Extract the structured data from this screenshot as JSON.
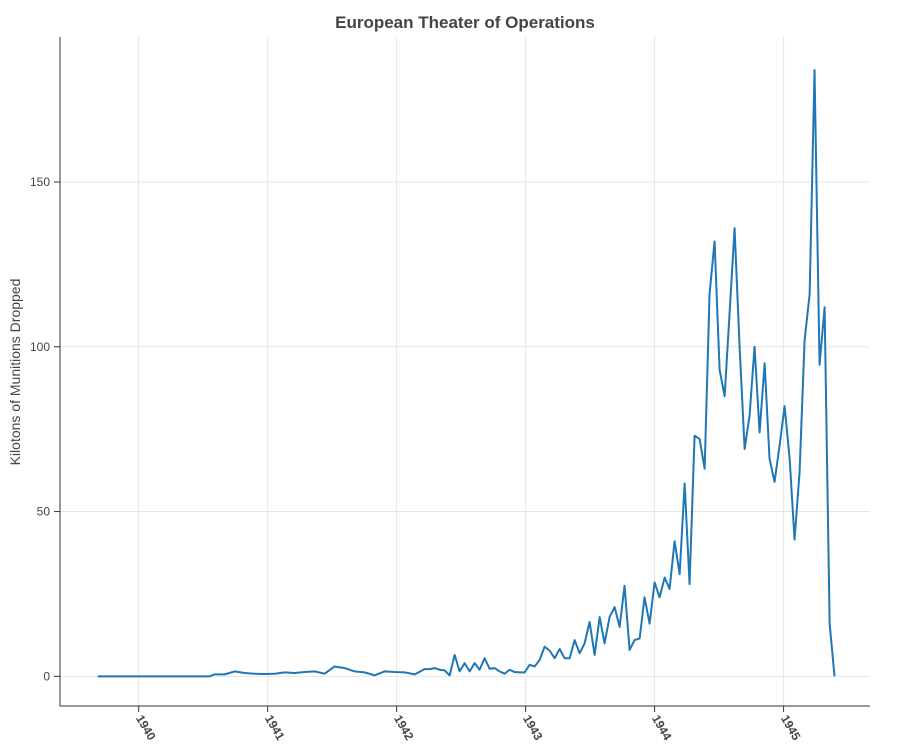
{
  "chart_data": {
    "type": "line",
    "title": "European Theater of Operations",
    "y_label": "Kilotons of Munitions Dropped",
    "x": [
      1939.682,
      1940.55,
      1940.589,
      1940.667,
      1940.744,
      1940.822,
      1940.899,
      1940.977,
      1941.054,
      1941.132,
      1941.209,
      1941.287,
      1941.364,
      1941.442,
      1941.519,
      1941.597,
      1941.674,
      1941.752,
      1941.829,
      1941.907,
      1941.984,
      1942.062,
      1942.14,
      1942.217,
      1942.256,
      1942.295,
      1942.333,
      1942.372,
      1942.411,
      1942.45,
      1942.488,
      1942.527,
      1942.566,
      1942.605,
      1942.643,
      1942.682,
      1942.721,
      1942.76,
      1942.798,
      1942.837,
      1942.876,
      1942.915,
      1942.953,
      1942.992,
      1943.031,
      1943.07,
      1943.109,
      1943.147,
      1943.186,
      1943.225,
      1943.264,
      1943.302,
      1943.341,
      1943.38,
      1943.419,
      1943.457,
      1943.496,
      1943.535,
      1943.574,
      1943.612,
      1943.651,
      1943.69,
      1943.729,
      1943.767,
      1943.806,
      1943.845,
      1943.884,
      1943.922,
      1943.961,
      1944.0,
      1944.039,
      1944.078,
      1944.116,
      1944.155,
      1944.194,
      1944.233,
      1944.271,
      1944.31,
      1944.349,
      1944.388,
      1944.426,
      1944.465,
      1944.504,
      1944.543,
      1944.581,
      1944.62,
      1944.659,
      1944.698,
      1944.736,
      1944.775,
      1944.814,
      1944.853,
      1944.891,
      1944.93,
      1944.969,
      1945.008,
      1945.047,
      1945.085,
      1945.124,
      1945.163,
      1945.202,
      1945.24,
      1945.279,
      1945.318,
      1945.357,
      1945.395
    ],
    "series": [
      {
        "color": "#1f77b4",
        "values": [
          0,
          0,
          0.6,
          0.6,
          1.5,
          1,
          0.8,
          0.7,
          0.8,
          1.2,
          1,
          1.3,
          1.5,
          0.8,
          3,
          2.5,
          1.5,
          1.2,
          0.3,
          1.5,
          1.3,
          1.2,
          0.6,
          2.2,
          2.2,
          2.5,
          2,
          1.8,
          0.3,
          6.5,
          1.5,
          4,
          1.5,
          4,
          2,
          5.5,
          2.3,
          2.5,
          1.5,
          0.8,
          2,
          1.3,
          1.2,
          1.2,
          3.5,
          3,
          5,
          9,
          7.8,
          5.5,
          8.3,
          5.5,
          5.5,
          11,
          7,
          10,
          16.5,
          6.5,
          18,
          10,
          18,
          21,
          15,
          27.5,
          8,
          11,
          11.5,
          24,
          16,
          28.5,
          24,
          30,
          26.5,
          41,
          31,
          58.5,
          28,
          73,
          72,
          63,
          116,
          132,
          93,
          85,
          110,
          136,
          100,
          69,
          79,
          100,
          74,
          95,
          66,
          59,
          70,
          82,
          66,
          41.5,
          62,
          102,
          116,
          184,
          94.5,
          112,
          16,
          0
        ]
      }
    ],
    "xlim": [
      1939.39,
      1945.67
    ],
    "xticks": [
      1940,
      1941,
      1942,
      1943,
      1944,
      1945
    ],
    "ylim": [
      -9,
      194
    ],
    "yticks": [
      0,
      50,
      100,
      150
    ],
    "grid": true
  }
}
